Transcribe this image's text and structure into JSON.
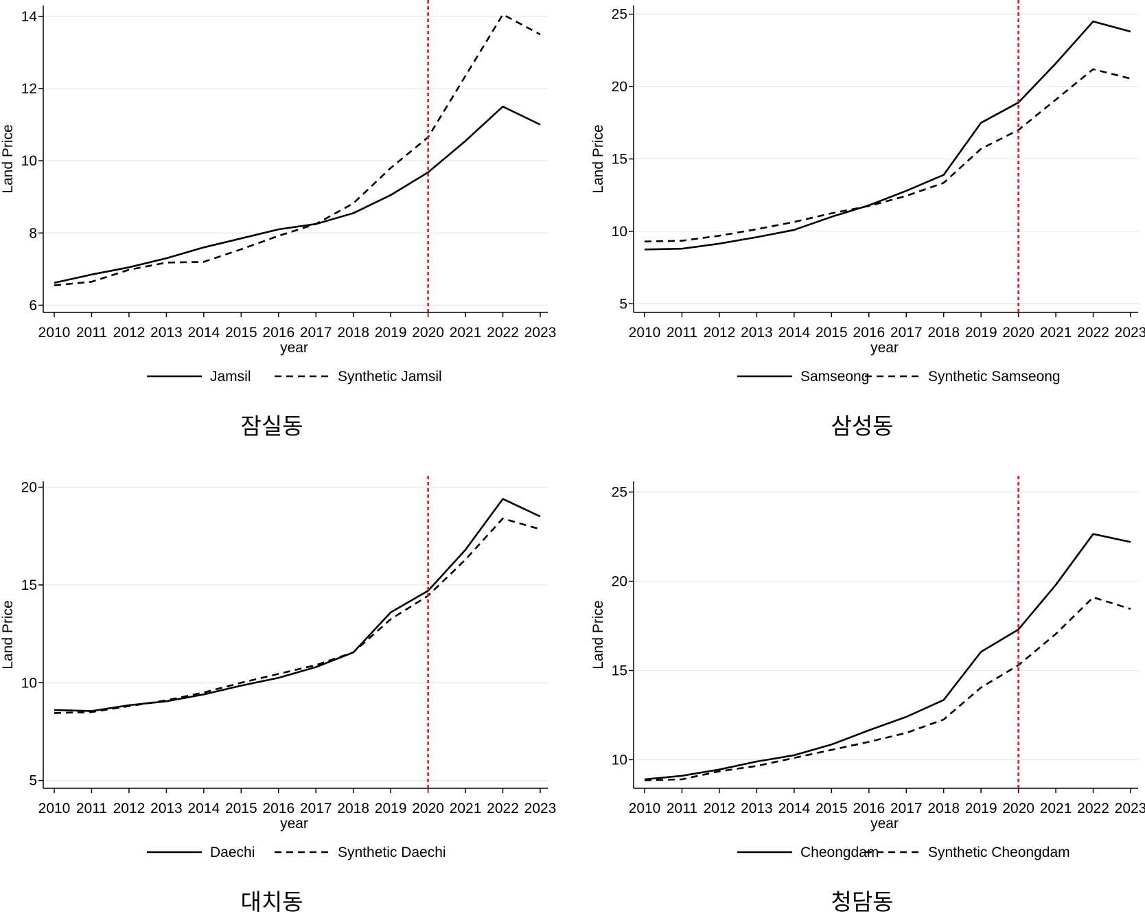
{
  "chart_data": [
    {
      "type": "line",
      "caption": "잠실동",
      "xlabel": "year",
      "ylabel": "Land Price",
      "x": [
        2010,
        2011,
        2012,
        2013,
        2014,
        2015,
        2016,
        2017,
        2018,
        2019,
        2020,
        2021,
        2022,
        2023
      ],
      "xticks": [
        "2010",
        "2011",
        "2012",
        "2013",
        "2014",
        "2015",
        "2016",
        "2017",
        "2018",
        "2019",
        "2020",
        "2021",
        "2022",
        "2023"
      ],
      "ylim": [
        5.8,
        14.3
      ],
      "yticks": [
        6,
        8,
        10,
        12,
        14
      ],
      "treatment_year": 2020,
      "series": [
        {
          "name": "Jamsil",
          "style": "solid",
          "values": [
            6.62,
            6.85,
            7.05,
            7.3,
            7.6,
            7.85,
            8.1,
            8.25,
            8.55,
            9.05,
            9.68,
            10.55,
            11.5,
            11.0
          ]
        },
        {
          "name": "Synthetic Jamsil",
          "style": "dashed",
          "values": [
            6.55,
            6.65,
            6.98,
            7.18,
            7.2,
            7.55,
            7.92,
            8.25,
            8.82,
            9.8,
            10.65,
            12.35,
            14.05,
            13.5
          ]
        }
      ]
    },
    {
      "type": "line",
      "caption": "삼성동",
      "xlabel": "year",
      "ylabel": "Land Price",
      "x": [
        2010,
        2011,
        2012,
        2013,
        2014,
        2015,
        2016,
        2017,
        2018,
        2019,
        2020,
        2021,
        2022,
        2023
      ],
      "xticks": [
        "2010",
        "2011",
        "2012",
        "2013",
        "2014",
        "2015",
        "2016",
        "2017",
        "2018",
        "2019",
        "2020",
        "2021",
        "2022",
        "2023"
      ],
      "ylim": [
        4.4,
        25.6
      ],
      "yticks": [
        5,
        10,
        15,
        20,
        25
      ],
      "treatment_year": 2020,
      "series": [
        {
          "name": "Samseong",
          "style": "solid",
          "values": [
            8.75,
            8.8,
            9.15,
            9.6,
            10.1,
            11.0,
            11.8,
            12.8,
            13.9,
            17.5,
            18.9,
            21.6,
            24.5,
            23.8
          ]
        },
        {
          "name": "Synthetic Samseong",
          "style": "dashed",
          "values": [
            9.3,
            9.35,
            9.7,
            10.15,
            10.65,
            11.25,
            11.75,
            12.45,
            13.35,
            15.7,
            17.0,
            19.1,
            21.2,
            20.55
          ]
        }
      ]
    },
    {
      "type": "line",
      "caption": "대치동",
      "xlabel": "year",
      "ylabel": "Land Price",
      "x": [
        2010,
        2011,
        2012,
        2013,
        2014,
        2015,
        2016,
        2017,
        2018,
        2019,
        2020,
        2021,
        2022,
        2023
      ],
      "xticks": [
        "2010",
        "2011",
        "2012",
        "2013",
        "2014",
        "2015",
        "2016",
        "2017",
        "2018",
        "2019",
        "2020",
        "2021",
        "2022",
        "2023"
      ],
      "ylim": [
        4.6,
        20.3
      ],
      "yticks": [
        5,
        10,
        15,
        20
      ],
      "treatment_year": 2020,
      "series": [
        {
          "name": "Daechi",
          "style": "solid",
          "values": [
            8.6,
            8.55,
            8.85,
            9.05,
            9.4,
            9.85,
            10.25,
            10.8,
            11.55,
            13.6,
            14.7,
            16.8,
            19.4,
            18.5
          ]
        },
        {
          "name": "Synthetic Daechi",
          "style": "dashed",
          "values": [
            8.45,
            8.5,
            8.8,
            9.1,
            9.5,
            10.0,
            10.45,
            10.9,
            11.55,
            13.25,
            14.45,
            16.3,
            18.4,
            17.85
          ]
        }
      ]
    },
    {
      "type": "line",
      "caption": "청담동",
      "xlabel": "year",
      "ylabel": "Land Price",
      "x": [
        2010,
        2011,
        2012,
        2013,
        2014,
        2015,
        2016,
        2017,
        2018,
        2019,
        2020,
        2021,
        2022,
        2023
      ],
      "xticks": [
        "2010",
        "2011",
        "2012",
        "2013",
        "2014",
        "2015",
        "2016",
        "2017",
        "2018",
        "2019",
        "2020",
        "2021",
        "2022",
        "2023"
      ],
      "ylim": [
        8.4,
        25.6
      ],
      "yticks": [
        10,
        15,
        20,
        25
      ],
      "treatment_year": 2020,
      "series": [
        {
          "name": "Cheongdam",
          "style": "solid",
          "values": [
            8.9,
            9.1,
            9.45,
            9.9,
            10.25,
            10.85,
            11.65,
            12.4,
            13.35,
            16.05,
            17.3,
            19.8,
            22.65,
            22.2
          ]
        },
        {
          "name": "Synthetic Cheongdam",
          "style": "dashed",
          "values": [
            8.85,
            8.9,
            9.35,
            9.65,
            10.1,
            10.55,
            11.0,
            11.5,
            12.25,
            14.05,
            15.3,
            17.05,
            19.1,
            18.45
          ]
        }
      ]
    }
  ],
  "colors": {
    "line": "#000000",
    "treatment_line": "#e8141c",
    "grid": "#e6e6e6",
    "axis": "#000000"
  }
}
